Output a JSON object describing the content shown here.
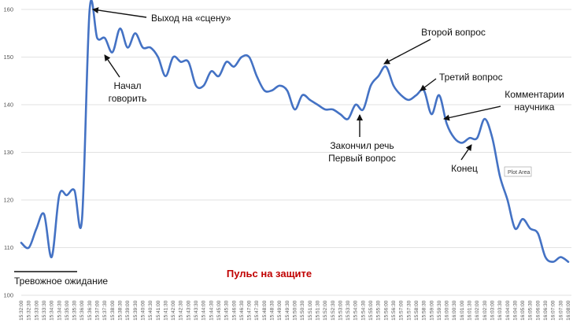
{
  "chart_data": {
    "type": "line",
    "subtitle": "Пульс на защите",
    "ylim": [
      100,
      160
    ],
    "yticks": [
      100,
      110,
      120,
      130,
      140,
      150,
      160
    ],
    "grid": true,
    "x_labels": [
      "15:32:00",
      "15:32:30",
      "15:33:00",
      "15:33:30",
      "15:34:00",
      "15:34:30",
      "15:35:00",
      "15:35:30",
      "15:36:00",
      "15:36:30",
      "15:37:00",
      "15:37:30",
      "15:38:00",
      "15:38:30",
      "15:39:00",
      "15:39:30",
      "15:40:00",
      "15:40:30",
      "15:41:00",
      "15:41:30",
      "15:42:00",
      "15:42:30",
      "15:43:00",
      "15:43:30",
      "15:44:00",
      "15:44:30",
      "15:45:00",
      "15:45:30",
      "15:46:00",
      "15:46:30",
      "15:47:00",
      "15:47:30",
      "15:48:00",
      "15:48:30",
      "15:49:00",
      "15:49:30",
      "15:50:00",
      "15:50:30",
      "15:51:00",
      "15:51:30",
      "15:52:00",
      "15:52:30",
      "15:53:00",
      "15:53:30",
      "15:54:00",
      "15:54:30",
      "15:55:00",
      "15:55:30",
      "15:56:00",
      "15:56:30",
      "15:57:00",
      "15:57:30",
      "15:58:00",
      "15:58:30",
      "15:59:00",
      "15:59:30",
      "16:00:00",
      "16:00:30",
      "16:01:00",
      "16:01:30",
      "16:02:00",
      "16:02:30",
      "16:03:00",
      "16:03:30",
      "16:04:00",
      "16:04:30",
      "16:05:00",
      "16:05:30",
      "16:06:00",
      "16:06:30",
      "16:07:00",
      "16:07:30",
      "16:08:00"
    ],
    "series": [
      {
        "values": [
          111,
          110,
          114,
          117,
          108,
          121,
          121,
          122,
          116,
          160,
          154,
          154,
          151,
          156,
          152,
          155,
          152,
          152,
          150,
          146,
          150,
          149,
          149,
          144,
          144,
          147,
          146,
          149,
          148,
          150,
          150,
          146,
          143,
          143,
          144,
          143,
          139,
          142,
          141,
          140,
          139,
          139,
          138,
          137,
          140,
          139,
          144,
          146,
          148,
          144,
          142,
          141,
          142,
          143,
          138,
          142,
          136,
          133,
          132,
          133,
          133,
          137,
          133,
          125,
          120,
          114,
          116,
          114,
          113,
          108,
          107,
          108,
          107
        ],
        "color": "#4472c4"
      }
    ],
    "annotations": [
      {
        "text": "Выход на «сцену»",
        "x": "15:36:30",
        "y": 160
      },
      {
        "text": "Начал\nговорить",
        "x": "15:38:00",
        "y": 151
      },
      {
        "text": "Второй вопрос",
        "x": "15:56:00",
        "y": 148
      },
      {
        "text": "Третий вопрос",
        "x": "15:58:30",
        "y": 143
      },
      {
        "text": "Комментарии\nнаучника",
        "x": "16:00:00",
        "y": 136
      },
      {
        "text": "Закончил речь\nПервый вопрос",
        "x": "15:54:30",
        "y": 139
      },
      {
        "text": "Конец",
        "x": "16:02:00",
        "y": 133
      }
    ],
    "bracket_label": "Тревожное ожидание",
    "tooltip": "Plot Area"
  }
}
